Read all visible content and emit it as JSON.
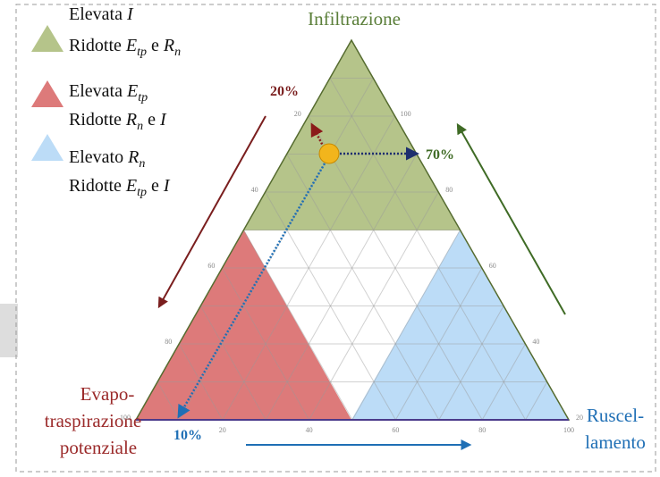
{
  "legend": [
    {
      "color": "#b5c48a",
      "lines": [
        [
          {
            "text": "Elevata "
          },
          {
            "text": "I",
            "style": "math"
          }
        ],
        [
          {
            "text": "Ridotte "
          },
          {
            "text": "E",
            "style": "math"
          },
          {
            "text": "tp",
            "style": "sub"
          },
          {
            "text": " e "
          },
          {
            "text": "R",
            "style": "math"
          },
          {
            "text": "n",
            "style": "sub"
          }
        ]
      ]
    },
    {
      "color": "#dd7a7a",
      "lines": [
        [
          {
            "text": "Elevata "
          },
          {
            "text": "E",
            "style": "math"
          },
          {
            "text": "tp",
            "style": "sub"
          }
        ],
        [
          {
            "text": "Ridotte "
          },
          {
            "text": "R",
            "style": "math"
          },
          {
            "text": "n",
            "style": "sub"
          },
          {
            "text": " e "
          },
          {
            "text": "I",
            "style": "math"
          }
        ]
      ]
    },
    {
      "color": "#bcdcf7",
      "lines": [
        [
          {
            "text": "Elevato "
          },
          {
            "text": "R",
            "style": "math"
          },
          {
            "text": "n",
            "style": "sub"
          }
        ],
        [
          {
            "text": "Ridotte "
          },
          {
            "text": "E",
            "style": "math"
          },
          {
            "text": "tp",
            "style": "sub"
          },
          {
            "text": " e "
          },
          {
            "text": "I",
            "style": "math"
          }
        ]
      ]
    }
  ],
  "vertices": {
    "top": [
      "Infiltrazione"
    ],
    "left": [
      "Evapo-",
      "traspirazione",
      "potenziale"
    ],
    "right": [
      "Ruscel-",
      "lamento"
    ]
  },
  "readings": {
    "infiltration": "70%",
    "evapotranspiration": "20%",
    "runoff": "10%"
  },
  "side_ticks": {
    "left": [
      20,
      40,
      60,
      80,
      100
    ],
    "right": [
      100,
      80,
      60,
      40,
      20
    ],
    "bottom": [
      20,
      40,
      60,
      80,
      100
    ]
  }
}
